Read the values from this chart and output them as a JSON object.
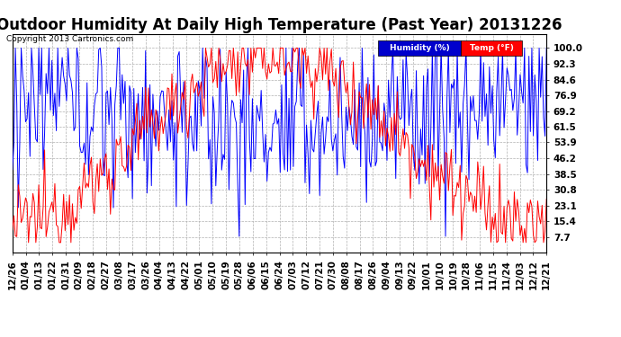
{
  "title": "Outdoor Humidity At Daily High Temperature (Past Year) 20131226",
  "copyright_text": "Copyright 2013 Cartronics.com",
  "background_color": "#ffffff",
  "plot_bg_color": "#ffffff",
  "grid_color": "#b0b0b0",
  "ylim": [
    0,
    107
  ],
  "yticks": [
    7.7,
    15.4,
    23.1,
    30.8,
    38.5,
    46.2,
    53.9,
    61.5,
    69.2,
    76.9,
    84.6,
    92.3,
    100.0
  ],
  "humidity_color": "#0000ff",
  "temp_color": "#ff0000",
  "legend_humidity_bg": "#0000cc",
  "legend_temp_bg": "#ff0000",
  "title_fontsize": 12,
  "tick_fontsize": 7.5,
  "n_points": 366,
  "x_tick_labels": [
    "12/26",
    "01/04",
    "01/13",
    "01/22",
    "01/31",
    "02/09",
    "02/18",
    "02/27",
    "03/08",
    "03/17",
    "03/26",
    "04/04",
    "04/13",
    "04/22",
    "05/01",
    "05/10",
    "05/19",
    "05/28",
    "06/06",
    "06/15",
    "06/24",
    "07/03",
    "07/12",
    "07/21",
    "07/30",
    "08/08",
    "08/17",
    "08/26",
    "09/04",
    "09/13",
    "09/22",
    "10/01",
    "10/10",
    "10/19",
    "10/28",
    "11/06",
    "11/15",
    "11/24",
    "12/03",
    "12/12",
    "12/21"
  ]
}
